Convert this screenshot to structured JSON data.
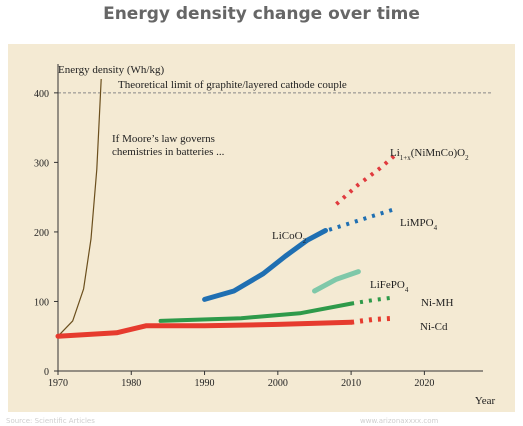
{
  "page": {
    "title": "Energy density change over time",
    "footer_left": "Source: Scientific Articles",
    "footer_right": "www.arizonaxxxx.com"
  },
  "colors": {
    "background": "#f4ead3",
    "limit_line": "#888888",
    "moore": "#6b4f1d",
    "LiNiMnCoO2": "#e03a3e",
    "LiMPO4": "#1f6fb2",
    "LiCoO2": "#1f6fb2",
    "LiFePO4": "#7fc8a9",
    "NiMH": "#2e9a4a",
    "NiCd": "#e63b2e"
  },
  "chart_data": {
    "type": "line",
    "title": "Energy density change over time",
    "ylabel": "Energy density (Wh/kg)",
    "xlabel": "Year",
    "xlim": [
      1970,
      2028
    ],
    "ylim": [
      0,
      430
    ],
    "xticks": [
      1970,
      1980,
      1990,
      2000,
      2010,
      2020
    ],
    "yticks": [
      0,
      100,
      200,
      300,
      400
    ],
    "grid": false,
    "limit": {
      "value": 400,
      "label": "Theoretical limit of graphite/layered cathode couple"
    },
    "moore": {
      "label_lines": [
        "If Moore’s law governs",
        "chemistries in batteries ..."
      ],
      "points": [
        [
          1970,
          50
        ],
        [
          1972,
          72
        ],
        [
          1973.5,
          118
        ],
        [
          1974.5,
          190
        ],
        [
          1975.3,
          290
        ],
        [
          1975.9,
          420
        ]
      ]
    },
    "series": [
      {
        "name": "Li1+x(NiMnCo)O2",
        "label_main": "Li",
        "label_sub": "1+x",
        "label_rest": "(NiMnCo)O",
        "label_sub2": "2",
        "color_key": "LiNiMnCoO2",
        "solid": [],
        "dotted": [
          [
            2008,
            240
          ],
          [
            2011,
            268
          ],
          [
            2014,
            292
          ],
          [
            2016.5,
            315
          ]
        ]
      },
      {
        "name": "LiMPO4",
        "label_main": "LiMPO",
        "label_sub": "4",
        "label_rest": "",
        "label_sub2": "",
        "color_key": "LiMPO4",
        "solid": [],
        "dotted": [
          [
            2007,
            203
          ],
          [
            2010,
            213
          ],
          [
            2013,
            223
          ],
          [
            2016,
            233
          ]
        ]
      },
      {
        "name": "LiCoO2",
        "label_main": "LiCoO",
        "label_sub": "2",
        "label_rest": "",
        "label_sub2": "",
        "color_key": "LiCoO2",
        "solid": [
          [
            1990,
            103
          ],
          [
            1994,
            115
          ],
          [
            1998,
            140
          ],
          [
            2001,
            165
          ],
          [
            2004,
            188
          ],
          [
            2006.5,
            202
          ]
        ],
        "dotted": []
      },
      {
        "name": "LiFePO4",
        "label_main": "LiFePO",
        "label_sub": "4",
        "label_rest": "",
        "label_sub2": "",
        "color_key": "LiFePO4",
        "solid": [
          [
            2005,
            115
          ],
          [
            2008,
            132
          ],
          [
            2011,
            143
          ]
        ],
        "dotted": []
      },
      {
        "name": "Ni-MH",
        "label_main": "Ni-MH",
        "label_sub": "",
        "label_rest": "",
        "label_sub2": "",
        "color_key": "NiMH",
        "solid": [
          [
            1984,
            72
          ],
          [
            1995,
            76
          ],
          [
            2003,
            83
          ],
          [
            2010,
            97
          ]
        ],
        "dotted": [
          [
            2010,
            97
          ],
          [
            2013,
            102
          ],
          [
            2016,
            106
          ]
        ]
      },
      {
        "name": "Ni-Cd",
        "label_main": "Ni-Cd",
        "label_sub": "",
        "label_rest": "",
        "label_sub2": "",
        "color_key": "NiCd",
        "solid": [
          [
            1970,
            50
          ],
          [
            1978,
            55
          ],
          [
            1982,
            65
          ],
          [
            1990,
            65
          ],
          [
            2000,
            67
          ],
          [
            2010,
            70
          ]
        ],
        "dotted": [
          [
            2010,
            70
          ],
          [
            2013,
            74
          ],
          [
            2016,
            76
          ]
        ]
      }
    ]
  }
}
